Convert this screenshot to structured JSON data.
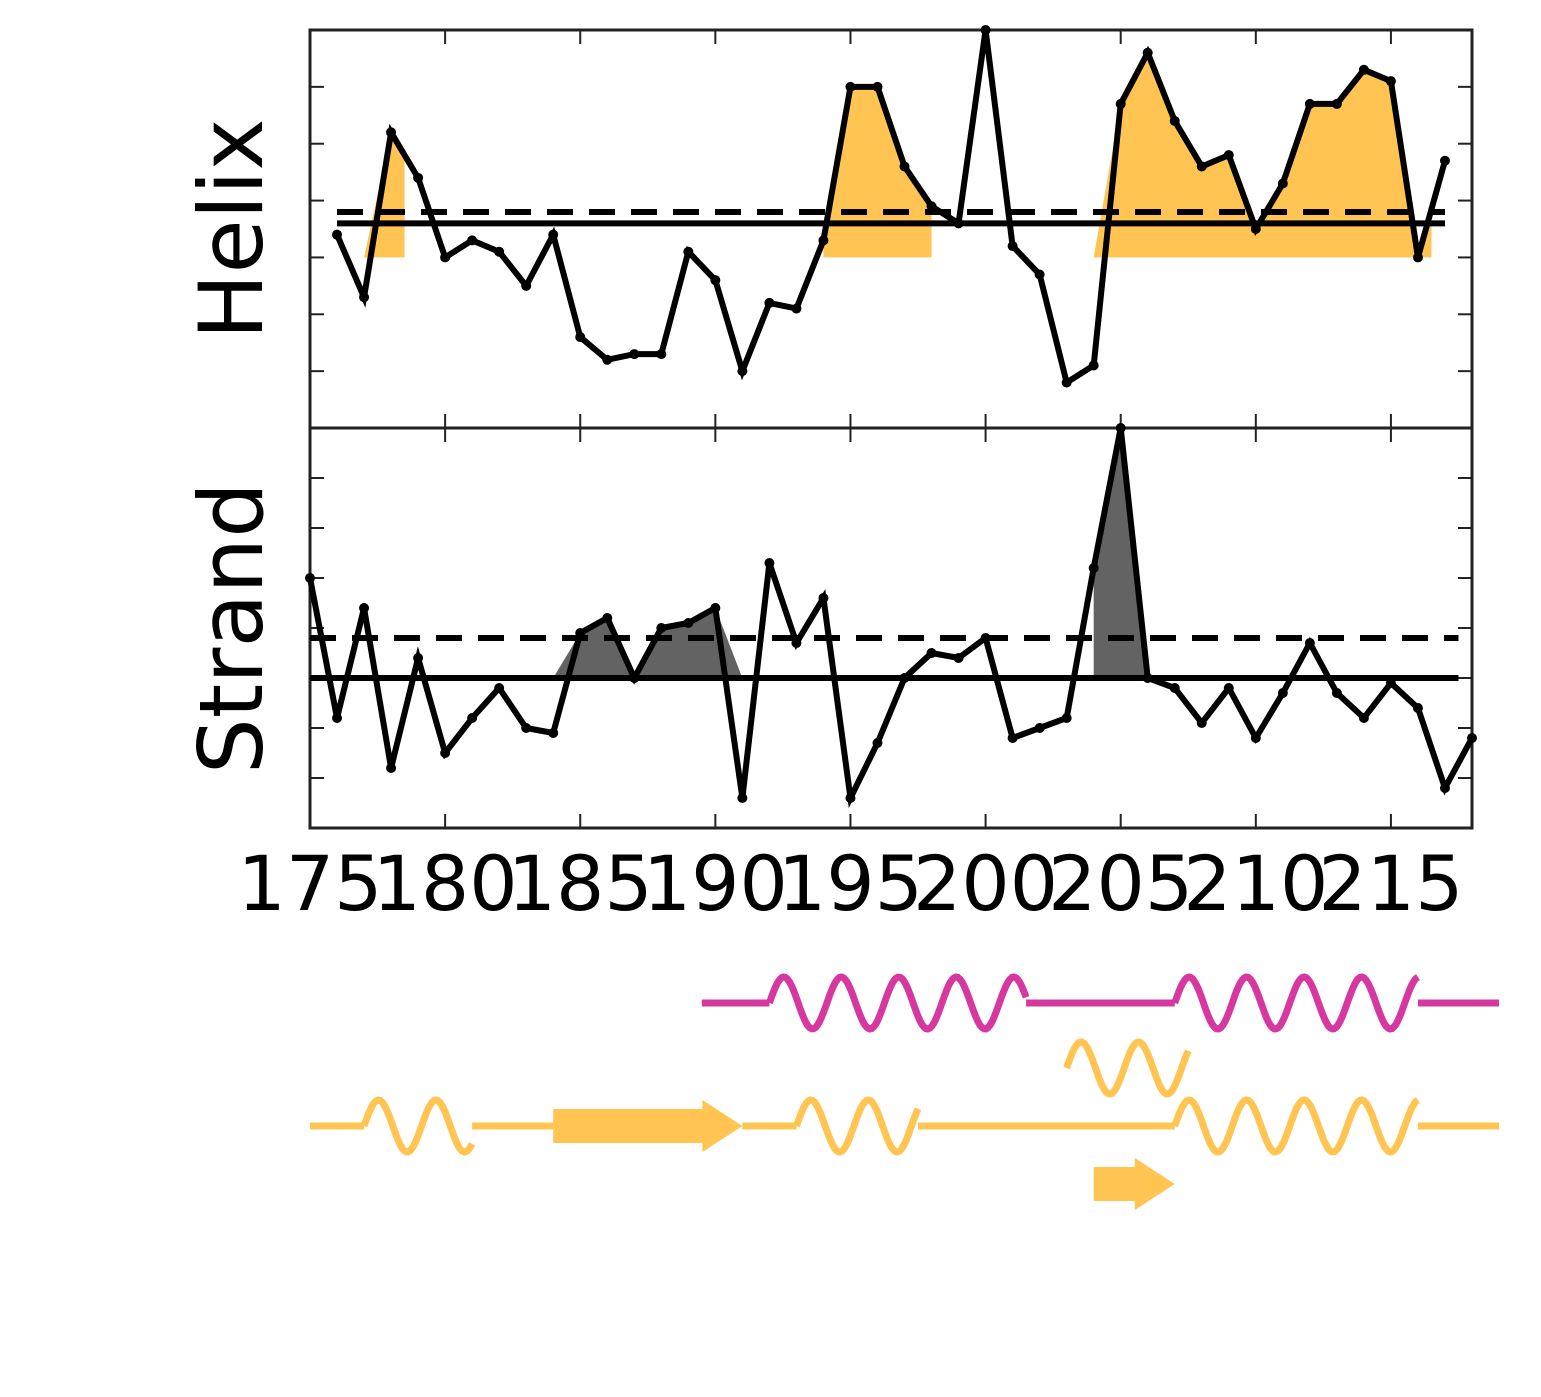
{
  "chart_data": {
    "type": "line",
    "x_range": [
      175,
      218
    ],
    "x_ticks": [
      175,
      180,
      185,
      190,
      195,
      200,
      205,
      210,
      215
    ],
    "x_tick_labels": [
      "175",
      "180",
      "185",
      "190",
      "195",
      "200",
      "205",
      "210",
      "215"
    ],
    "grid": false,
    "panels": [
      {
        "ylabel": "Helix",
        "y_range": [
          -7,
          0
        ],
        "fill_color": "#FFC451",
        "mean": -3.4,
        "threshold": -3.2,
        "x": [
          176,
          177,
          178,
          179,
          180,
          181,
          182,
          183,
          184,
          185,
          186,
          187,
          188,
          189,
          190,
          191,
          192,
          193,
          194,
          195,
          196,
          197,
          198,
          199,
          200,
          201,
          202,
          203,
          204,
          205,
          206,
          207,
          208,
          209,
          210,
          211,
          212,
          213,
          214,
          215,
          216,
          217
        ],
        "values": [
          -3.6,
          -4.7,
          -1.8,
          -2.6,
          -4.0,
          -3.7,
          -3.9,
          -4.5,
          -3.6,
          -5.4,
          -5.8,
          -5.7,
          -5.7,
          -3.9,
          -4.4,
          -6.0,
          -4.8,
          -4.9,
          -3.7,
          -1.0,
          -1.0,
          -2.4,
          -3.1,
          -3.4,
          0.0,
          -3.8,
          -4.3,
          -6.2,
          -5.9,
          -1.3,
          -0.4,
          -1.6,
          -2.4,
          -2.2,
          -3.5,
          -2.7,
          -1.3,
          -1.3,
          -0.7,
          -0.9,
          -4.0,
          -2.3
        ],
        "shaded_regions": [
          [
            176.5,
            178.5
          ],
          [
            194,
            198
          ],
          [
            203.5,
            216.5
          ]
        ]
      },
      {
        "ylabel": "Strand",
        "y_range": [
          -8,
          0
        ],
        "fill_color": "#636363",
        "mean": -5.0,
        "threshold": -4.2,
        "x": [
          175,
          176,
          177,
          178,
          179,
          180,
          181,
          182,
          183,
          184,
          185,
          186,
          187,
          188,
          189,
          190,
          191,
          192,
          193,
          194,
          195,
          196,
          197,
          198,
          199,
          200,
          201,
          202,
          203,
          204,
          205,
          206,
          207,
          208,
          209,
          210,
          211,
          212,
          213,
          214,
          215,
          216,
          217,
          218
        ],
        "values": [
          -3.0,
          -5.8,
          -3.6,
          -6.8,
          -4.6,
          -6.5,
          -5.8,
          -5.2,
          -6.0,
          -6.1,
          -4.1,
          -3.8,
          -5.0,
          -4.0,
          -3.9,
          -3.6,
          -7.4,
          -2.7,
          -4.3,
          -3.4,
          -7.4,
          -6.3,
          -5.0,
          -4.5,
          -4.6,
          -4.2,
          -6.2,
          -6.0,
          -5.8,
          -2.8,
          0.0,
          -5.0,
          -5.2,
          -5.9,
          -5.2,
          -6.2,
          -5.3,
          -4.3,
          -5.3,
          -5.8,
          -5.1,
          -5.6,
          -7.2,
          -6.2
        ],
        "shaded_regions": [
          [
            184,
            191
          ],
          [
            204,
            206
          ]
        ]
      }
    ],
    "secondary_structure_tracks": [
      {
        "color": "#D6389F",
        "segments": [
          {
            "type": "coil",
            "from": 189.5,
            "to": 192
          },
          {
            "type": "helix",
            "from": 192,
            "to": 201.5
          },
          {
            "type": "coil",
            "from": 201.5,
            "to": 207
          },
          {
            "type": "helix",
            "from": 207,
            "to": 216
          },
          {
            "type": "coil",
            "from": 216,
            "to": 219
          }
        ]
      },
      {
        "color": "#FFC451",
        "segments": [
          {
            "type": "helix",
            "from": 203,
            "to": 207.5
          }
        ]
      },
      {
        "color": "#FFC451",
        "segments": [
          {
            "type": "coil",
            "from": 175,
            "to": 177
          },
          {
            "type": "helix",
            "from": 177,
            "to": 181
          },
          {
            "type": "coil",
            "from": 181,
            "to": 184
          },
          {
            "type": "strand",
            "from": 184,
            "to": 191
          },
          {
            "type": "coil",
            "from": 191,
            "to": 193
          },
          {
            "type": "helix",
            "from": 193,
            "to": 197.5
          },
          {
            "type": "coil",
            "from": 197.5,
            "to": 207
          },
          {
            "type": "helix",
            "from": 207,
            "to": 216
          },
          {
            "type": "coil",
            "from": 216,
            "to": 219
          }
        ]
      },
      {
        "color": "#FFC451",
        "segments": [
          {
            "type": "strand",
            "from": 204,
            "to": 207
          }
        ]
      }
    ]
  }
}
